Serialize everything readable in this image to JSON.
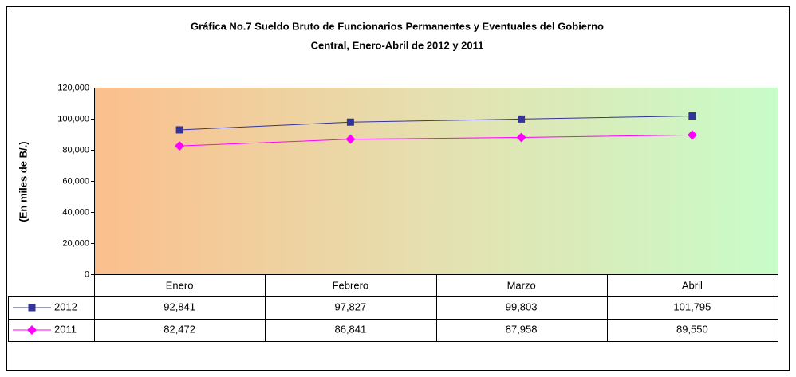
{
  "chart_data": {
    "type": "line",
    "title": [
      "Gráfica No.7 Sueldo Bruto de Funcionarios Permanentes y Eventuales del Gobierno",
      "Central, Enero-Abril de 2012 y 2011"
    ],
    "y_label": "(En miles de B/.)",
    "categories": [
      "Enero",
      "Febrero",
      "Marzo",
      "Abril"
    ],
    "series": [
      {
        "name": "2012",
        "color": "#333399",
        "marker": "square",
        "values": [
          92841,
          97827,
          99803,
          101795
        ],
        "value_labels": [
          "92,841",
          "97,827",
          "99,803",
          "101,795"
        ]
      },
      {
        "name": "2011",
        "color": "#ff00ff",
        "marker": "diamond",
        "values": [
          82472,
          86841,
          87958,
          89550
        ],
        "value_labels": [
          "82,472",
          "86,841",
          "87,958",
          "89,550"
        ]
      }
    ],
    "ylim": [
      0,
      120000
    ],
    "yticks": [
      0,
      {
        "value": 20000,
        "label": "20,000"
      },
      {
        "value": 40000,
        "label": "40,000"
      },
      {
        "value": 60000,
        "label": "60,000"
      },
      {
        "value": 80000,
        "label": "80,000"
      },
      {
        "value": 100000,
        "label": "100,000"
      },
      {
        "value": 120000,
        "label": "120,000"
      }
    ],
    "data_table": true
  }
}
